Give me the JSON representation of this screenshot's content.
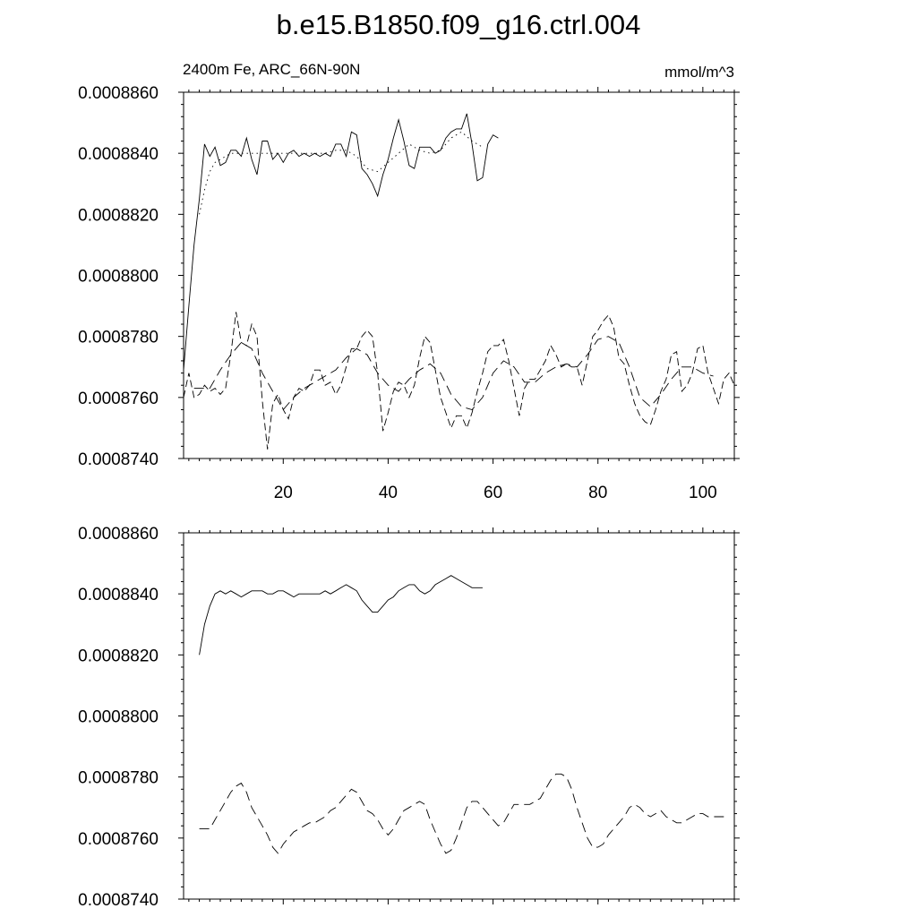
{
  "title": "b.e15.B1850.f09_g16.ctrl.004",
  "chart_data": [
    {
      "type": "line",
      "subtitle_left": "2400m Fe, ARC_66N-90N",
      "subtitle_right": "mmol/m^3",
      "xlim": [
        1,
        106
      ],
      "ylim": [
        0.000874,
        0.000886
      ],
      "xticks": [
        20,
        40,
        60,
        80,
        100
      ],
      "xtick_labels": [
        "20",
        "40",
        "60",
        "80",
        "100"
      ],
      "yticks": [
        0.000874,
        0.000876,
        0.000878,
        0.00088,
        0.000882,
        0.000884,
        0.000886
      ],
      "ytick_labels": [
        "0.0008740",
        "0.0008760",
        "0.0008780",
        "0.0008800",
        "0.0008820",
        "0.0008840",
        "0.0008860"
      ],
      "series": [
        {
          "style": "solid",
          "x": [
            1,
            2,
            3,
            4,
            5,
            6,
            7,
            8,
            9,
            10,
            11,
            12,
            13,
            14,
            15,
            16,
            17,
            18,
            19,
            20,
            21,
            22,
            23,
            24,
            25,
            26,
            27,
            28,
            29,
            30,
            31,
            32,
            33,
            34,
            35,
            36,
            37,
            38,
            39,
            40,
            41,
            42,
            43,
            44,
            45,
            46,
            47,
            48,
            49,
            50,
            51,
            52,
            53,
            54,
            55,
            56,
            57,
            58,
            59,
            60,
            61
          ],
          "values": [
            0.0008769,
            0.000879,
            0.000881,
            0.0008825,
            0.0008843,
            0.0008839,
            0.0008842,
            0.0008836,
            0.0008837,
            0.0008841,
            0.0008841,
            0.0008839,
            0.0008845,
            0.0008838,
            0.0008833,
            0.0008844,
            0.0008844,
            0.0008838,
            0.000884,
            0.0008837,
            0.000884,
            0.0008841,
            0.0008839,
            0.000884,
            0.0008839,
            0.000884,
            0.0008839,
            0.000884,
            0.0008839,
            0.0008843,
            0.0008843,
            0.0008839,
            0.0008847,
            0.0008846,
            0.0008835,
            0.0008833,
            0.000883,
            0.0008826,
            0.0008833,
            0.0008838,
            0.0008845,
            0.0008851,
            0.0008844,
            0.0008836,
            0.0008835,
            0.0008842,
            0.0008842,
            0.0008842,
            0.000884,
            0.0008841,
            0.0008845,
            0.0008847,
            0.0008848,
            0.0008848,
            0.0008853,
            0.0008843,
            0.0008831,
            0.0008832,
            0.0008843,
            0.0008846,
            0.0008845
          ]
        },
        {
          "style": "dotted",
          "x": [
            4,
            5,
            6,
            7,
            8,
            9,
            10,
            12,
            14,
            16,
            18,
            20,
            22,
            24,
            26,
            28,
            30,
            32,
            34,
            36,
            38,
            40,
            42,
            44,
            46,
            48,
            50,
            52,
            54,
            56,
            58
          ],
          "values": [
            0.000882,
            0.0008828,
            0.0008834,
            0.0008837,
            0.0008838,
            0.0008839,
            0.000884,
            0.000884,
            0.000884,
            0.000884,
            0.000884,
            0.000884,
            0.000884,
            0.000884,
            0.000884,
            0.000884,
            0.0008841,
            0.0008841,
            0.0008839,
            0.0008835,
            0.0008834,
            0.0008837,
            0.000884,
            0.0008843,
            0.0008841,
            0.000884,
            0.0008841,
            0.0008845,
            0.0008847,
            0.0008844,
            0.0008842
          ]
        },
        {
          "style": "dashed",
          "x": [
            1,
            2,
            3,
            4,
            5,
            6,
            7,
            8,
            9,
            10,
            11,
            12,
            13,
            14,
            15,
            16,
            17,
            18,
            19,
            20,
            21,
            22,
            23,
            24,
            25,
            26,
            27,
            28,
            29,
            30,
            31,
            32,
            33,
            34,
            35,
            36,
            37,
            38,
            39,
            40,
            41,
            42,
            43,
            44,
            45,
            46,
            47,
            48,
            49,
            50,
            51,
            52,
            53,
            54,
            55,
            56,
            57,
            58,
            59,
            60,
            61,
            62,
            63,
            64,
            65,
            66,
            67,
            68,
            69,
            70,
            71,
            72,
            73,
            74,
            75,
            76,
            77,
            78,
            79,
            80,
            81,
            82,
            83,
            84,
            85,
            86,
            87,
            88,
            89,
            90,
            91,
            92,
            93,
            94,
            95,
            96,
            97,
            98,
            99,
            100,
            101,
            102,
            103,
            104,
            105,
            106
          ],
          "values": [
            0.000876,
            0.0008768,
            0.000876,
            0.0008761,
            0.0008764,
            0.0008762,
            0.0008763,
            0.0008761,
            0.0008763,
            0.0008774,
            0.0008788,
            0.0008778,
            0.0008777,
            0.0008784,
            0.000878,
            0.0008759,
            0.0008743,
            0.0008758,
            0.0008761,
            0.0008756,
            0.0008753,
            0.000876,
            0.0008763,
            0.0008762,
            0.0008764,
            0.0008769,
            0.0008769,
            0.0008764,
            0.0008765,
            0.0008761,
            0.0008764,
            0.000877,
            0.0008776,
            0.0008776,
            0.000878,
            0.0008782,
            0.000878,
            0.0008768,
            0.0008749,
            0.0008755,
            0.0008762,
            0.0008765,
            0.0008764,
            0.000876,
            0.0008764,
            0.0008773,
            0.000878,
            0.0008778,
            0.0008769,
            0.000876,
            0.0008755,
            0.000875,
            0.0008754,
            0.0008754,
            0.000875,
            0.0008755,
            0.0008762,
            0.0008768,
            0.0008775,
            0.0008777,
            0.0008777,
            0.0008779,
            0.0008772,
            0.0008763,
            0.0008754,
            0.0008763,
            0.0008766,
            0.0008766,
            0.0008769,
            0.0008772,
            0.0008777,
            0.0008774,
            0.000877,
            0.0008771,
            0.000877,
            0.000877,
            0.0008764,
            0.0008772,
            0.000878,
            0.0008782,
            0.0008785,
            0.0008787,
            0.0008783,
            0.0008773,
            0.0008771,
            0.0008764,
            0.0008758,
            0.0008754,
            0.0008752,
            0.0008751,
            0.0008756,
            0.0008762,
            0.0008766,
            0.0008774,
            0.0008775,
            0.0008762,
            0.0008764,
            0.0008768,
            0.0008776,
            0.0008777,
            0.0008768,
            0.0008763,
            0.0008758,
            0.0008766,
            0.0008768,
            0.0008764
          ]
        },
        {
          "style": "long-dash",
          "x": [
            3,
            6,
            8,
            10,
            12,
            14,
            16,
            18,
            20,
            22,
            24,
            26,
            28,
            30,
            32,
            34,
            36,
            38,
            40,
            42,
            44,
            46,
            48,
            50,
            52,
            54,
            56,
            58,
            60,
            62,
            64,
            66,
            68,
            70,
            72,
            74,
            76,
            78,
            80,
            82,
            84,
            86,
            88,
            90,
            92,
            94,
            96,
            98,
            100,
            102
          ],
          "values": [
            0.0008763,
            0.0008763,
            0.0008769,
            0.0008774,
            0.0008778,
            0.0008776,
            0.0008768,
            0.0008762,
            0.0008756,
            0.000876,
            0.0008763,
            0.0008765,
            0.0008767,
            0.0008769,
            0.0008773,
            0.0008776,
            0.0008774,
            0.0008768,
            0.0008764,
            0.0008762,
            0.0008766,
            0.0008769,
            0.0008771,
            0.0008768,
            0.0008761,
            0.0008757,
            0.0008756,
            0.000876,
            0.0008768,
            0.0008772,
            0.000877,
            0.0008765,
            0.0008765,
            0.0008768,
            0.000877,
            0.0008771,
            0.000877,
            0.0008774,
            0.0008779,
            0.000878,
            0.0008778,
            0.000877,
            0.000876,
            0.0008757,
            0.0008761,
            0.0008766,
            0.000877,
            0.000877,
            0.0008768,
            0.0008767
          ]
        }
      ]
    },
    {
      "type": "line",
      "xlim": [
        1,
        106
      ],
      "ylim": [
        0.000874,
        0.000886
      ],
      "xticks": [
        20,
        40,
        60,
        80,
        100
      ],
      "yticks": [
        0.000874,
        0.000876,
        0.000878,
        0.00088,
        0.000882,
        0.000884,
        0.000886
      ],
      "ytick_labels": [
        "0.0008740",
        "0.0008760",
        "0.0008780",
        "0.0008800",
        "0.0008820",
        "0.0008840",
        "0.0008860"
      ],
      "series": [
        {
          "style": "solid",
          "x": [
            4,
            5,
            6,
            7,
            8,
            9,
            10,
            11,
            12,
            13,
            14,
            15,
            16,
            17,
            18,
            19,
            20,
            21,
            22,
            23,
            24,
            25,
            26,
            27,
            28,
            29,
            30,
            31,
            32,
            33,
            34,
            35,
            36,
            37,
            38,
            39,
            40,
            41,
            42,
            43,
            44,
            45,
            46,
            47,
            48,
            49,
            50,
            51,
            52,
            53,
            54,
            55,
            56,
            57,
            58
          ],
          "values": [
            0.000882,
            0.000883,
            0.0008836,
            0.000884,
            0.0008841,
            0.000884,
            0.0008841,
            0.000884,
            0.0008839,
            0.000884,
            0.0008841,
            0.0008841,
            0.0008841,
            0.000884,
            0.000884,
            0.0008841,
            0.0008841,
            0.000884,
            0.0008839,
            0.000884,
            0.000884,
            0.000884,
            0.000884,
            0.000884,
            0.0008841,
            0.000884,
            0.0008841,
            0.0008842,
            0.0008843,
            0.0008842,
            0.0008841,
            0.0008838,
            0.0008836,
            0.0008834,
            0.0008834,
            0.0008836,
            0.0008838,
            0.0008839,
            0.0008841,
            0.0008842,
            0.0008843,
            0.0008843,
            0.0008841,
            0.000884,
            0.0008841,
            0.0008843,
            0.0008844,
            0.0008845,
            0.0008846,
            0.0008845,
            0.0008844,
            0.0008843,
            0.0008842,
            0.0008842,
            0.0008842
          ]
        },
        {
          "style": "long-dash",
          "x": [
            4,
            5,
            6,
            7,
            8,
            9,
            10,
            11,
            12,
            13,
            14,
            15,
            16,
            17,
            18,
            19,
            20,
            21,
            22,
            23,
            24,
            25,
            26,
            27,
            28,
            29,
            30,
            31,
            32,
            33,
            34,
            35,
            36,
            37,
            38,
            39,
            40,
            41,
            42,
            43,
            44,
            45,
            46,
            47,
            48,
            49,
            50,
            51,
            52,
            53,
            54,
            55,
            56,
            57,
            58,
            59,
            60,
            61,
            62,
            63,
            64,
            65,
            66,
            67,
            68,
            69,
            70,
            71,
            72,
            73,
            74,
            75,
            76,
            77,
            78,
            79,
            80,
            81,
            82,
            83,
            84,
            85,
            86,
            87,
            88,
            89,
            90,
            91,
            92,
            93,
            94,
            95,
            96,
            97,
            98,
            99,
            100,
            101,
            102,
            103,
            104
          ],
          "values": [
            0.0008763,
            0.0008763,
            0.0008763,
            0.0008766,
            0.0008769,
            0.0008772,
            0.0008775,
            0.0008777,
            0.0008778,
            0.0008775,
            0.000877,
            0.0008767,
            0.0008764,
            0.0008761,
            0.0008757,
            0.0008755,
            0.0008758,
            0.000876,
            0.0008762,
            0.0008763,
            0.0008764,
            0.0008765,
            0.0008765,
            0.0008766,
            0.0008767,
            0.0008769,
            0.000877,
            0.0008772,
            0.0008774,
            0.0008776,
            0.0008775,
            0.0008772,
            0.0008769,
            0.0008768,
            0.0008766,
            0.0008763,
            0.0008761,
            0.0008763,
            0.0008766,
            0.0008769,
            0.000877,
            0.0008771,
            0.0008772,
            0.0008771,
            0.0008766,
            0.0008762,
            0.0008758,
            0.0008755,
            0.0008756,
            0.000876,
            0.0008765,
            0.000877,
            0.0008772,
            0.0008772,
            0.000877,
            0.0008768,
            0.0008766,
            0.0008764,
            0.0008765,
            0.0008768,
            0.0008771,
            0.0008771,
            0.0008771,
            0.0008771,
            0.0008772,
            0.0008773,
            0.0008776,
            0.0008779,
            0.0008781,
            0.0008781,
            0.000878,
            0.0008776,
            0.000877,
            0.0008765,
            0.000876,
            0.0008757,
            0.0008757,
            0.0008758,
            0.0008761,
            0.0008763,
            0.0008765,
            0.0008767,
            0.000877,
            0.0008771,
            0.000877,
            0.0008768,
            0.0008767,
            0.0008768,
            0.0008769,
            0.0008767,
            0.0008766,
            0.0008765,
            0.0008765,
            0.0008766,
            0.0008767,
            0.0008768,
            0.0008768,
            0.0008767,
            0.0008767,
            0.0008767,
            0.0008767
          ]
        }
      ]
    }
  ]
}
